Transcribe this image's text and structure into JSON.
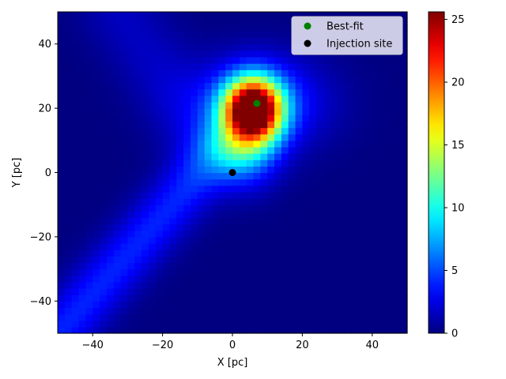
{
  "chart_data": {
    "type": "heatmap",
    "title": "",
    "xlabel": "X [pc]",
    "ylabel": "Y [pc]",
    "xlim": [
      -50,
      50
    ],
    "ylim": [
      -50,
      50
    ],
    "xticks": [
      -40,
      -20,
      0,
      20,
      40
    ],
    "yticks": [
      -40,
      -20,
      0,
      20,
      40
    ],
    "xtick_labels": [
      "−40",
      "−20",
      "0",
      "20",
      "40"
    ],
    "ytick_labels": [
      "−40",
      "−20",
      "0",
      "20",
      "40"
    ],
    "grid_cells": 50,
    "colormap": "jet",
    "colorbar": {
      "min": 0,
      "max": 25.6,
      "ticks": [
        0,
        5,
        10,
        15,
        20,
        25
      ],
      "tick_labels": [
        "0",
        "5",
        "10",
        "15",
        "20",
        "25"
      ]
    },
    "intensity_model": [
      {
        "kind": "peak",
        "x": 6,
        "y": 20,
        "sx": 5.5,
        "sy": 6.5,
        "amp": 25.6
      },
      {
        "kind": "peak",
        "x": 4,
        "y": 10,
        "sx": 6.5,
        "sy": 9,
        "amp": 8
      },
      {
        "kind": "peak",
        "x": 8,
        "y": 22,
        "sx": 13,
        "sy": 10,
        "amp": 5
      },
      {
        "kind": "ridge",
        "from": [
          -50,
          -50
        ],
        "to": [
          -5,
          5
        ],
        "width": 6,
        "amp": 4
      },
      {
        "kind": "ridge",
        "from": [
          -8,
          10
        ],
        "to": [
          -32,
          50
        ],
        "width": 8,
        "amp": 1.6
      }
    ],
    "legend": {
      "placement": "upper-right",
      "entries": [
        {
          "label": "Best-fit",
          "color": "#008000"
        },
        {
          "label": "Injection site",
          "color": "#000000"
        }
      ]
    },
    "points": [
      {
        "name": "Best-fit",
        "x": 7,
        "y": 21.5,
        "color": "#008000"
      },
      {
        "name": "Injection site",
        "x": 0,
        "y": 0,
        "color": "#000000"
      }
    ]
  }
}
